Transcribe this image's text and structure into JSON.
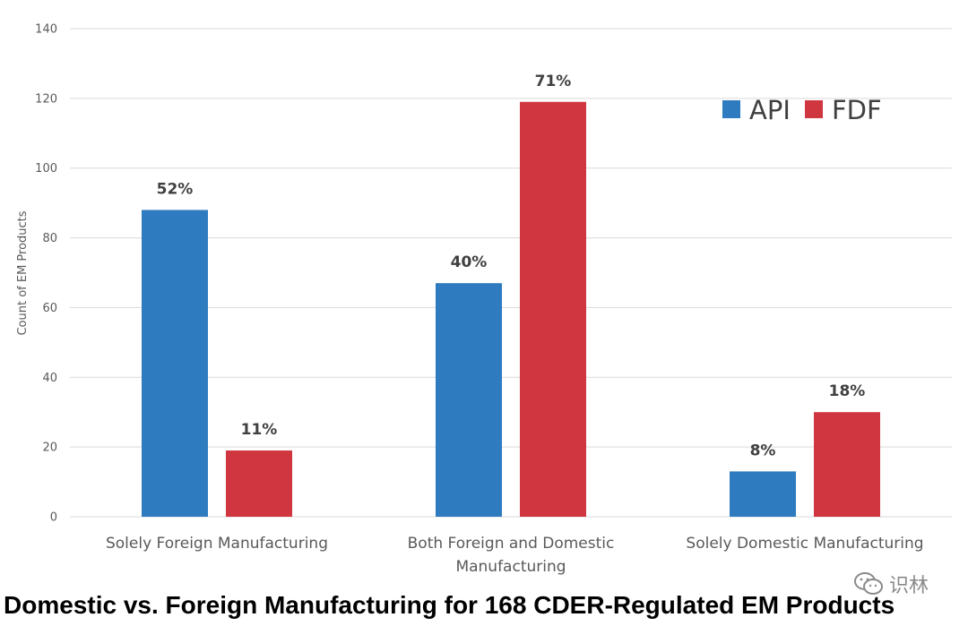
{
  "chart_data": {
    "type": "bar",
    "categories": [
      [
        "Solely Foreign Manufacturing"
      ],
      [
        "Both Foreign and Domestic",
        "Manufacturing"
      ],
      [
        "Solely Domestic Manufacturing"
      ]
    ],
    "series": [
      {
        "name": "API",
        "values": [
          88,
          67,
          13
        ],
        "labels": [
          "52%",
          "40%",
          "8%"
        ],
        "color": "#2e7bbf"
      },
      {
        "name": "FDF",
        "values": [
          19,
          119,
          30
        ],
        "labels": [
          "11%",
          "71%",
          "18%"
        ],
        "color": "#d0363f"
      }
    ],
    "ylabel": "Count of EM Products",
    "ylim": [
      0,
      140
    ],
    "yticks": [
      0,
      20,
      40,
      60,
      80,
      100,
      120,
      140
    ],
    "grid": true,
    "legend_position": "top-right"
  },
  "caption": "Domestic vs. Foreign Manufacturing for 168 CDER-Regulated EM Products",
  "watermark": {
    "text": "识林",
    "icon": "wechat-icon"
  }
}
